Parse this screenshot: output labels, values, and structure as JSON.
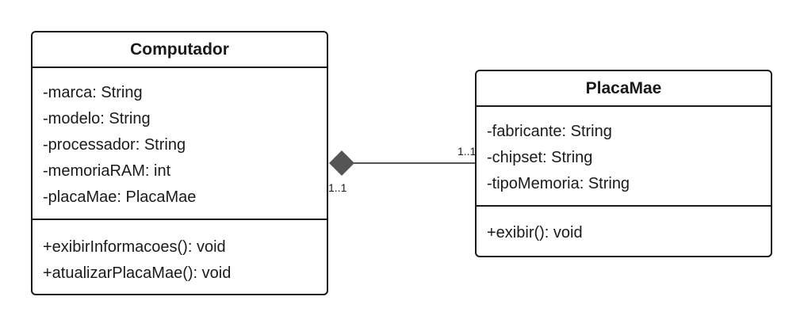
{
  "classes": {
    "computador": {
      "name": "Computador",
      "attributes": [
        "-marca: String",
        "-modelo: String",
        "-processador: String",
        "-memoriaRAM: int",
        "-placaMae: PlacaMae"
      ],
      "methods": [
        "+exibirInformacoes(): void",
        "+atualizarPlacaMae(): void"
      ]
    },
    "placamae": {
      "name": "PlacaMae",
      "attributes": [
        "-fabricante: String",
        "-chipset: String",
        "-tipoMemoria: String"
      ],
      "methods": [
        "+exibir(): void"
      ]
    }
  },
  "relationship": {
    "type": "composition",
    "multiplicity_source": "1..1",
    "multiplicity_target": "1..1",
    "colors": {
      "diamond": "#555555",
      "line": "#555555"
    }
  }
}
